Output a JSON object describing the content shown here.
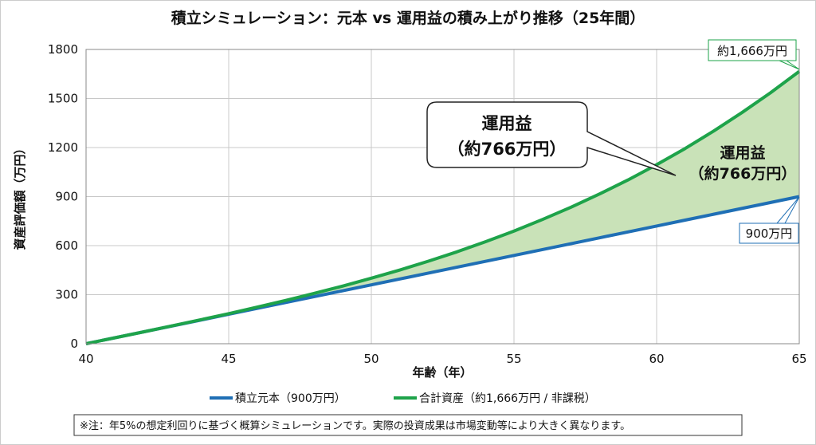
{
  "chart_data": {
    "type": "area",
    "title": "積立シミュレーション：元本 vs 運用益の積み上がり推移（25年間）",
    "xlabel": "年齢（年）",
    "ylabel": "資産評価額（万円）",
    "xlim": [
      40,
      65
    ],
    "ylim": [
      0,
      1800
    ],
    "xticks": [
      40,
      45,
      50,
      55,
      60,
      65
    ],
    "yticks": [
      0,
      300,
      600,
      900,
      1200,
      1500,
      1800
    ],
    "grid": true,
    "legend_position": "bottom",
    "x": [
      40,
      41,
      42,
      43,
      44,
      45,
      46,
      47,
      48,
      49,
      50,
      51,
      52,
      53,
      54,
      55,
      56,
      57,
      58,
      59,
      60,
      61,
      62,
      63,
      64,
      65
    ],
    "series": [
      {
        "name": "積立元本（900万円）",
        "color": "#1f6fb5",
        "values": [
          0,
          36,
          72,
          108,
          144,
          180,
          216,
          252,
          288,
          324,
          360,
          396,
          432,
          468,
          504,
          540,
          576,
          612,
          648,
          684,
          720,
          756,
          792,
          828,
          864,
          900
        ]
      },
      {
        "name": "合計資産（約1,666万円 / 非課税）",
        "color": "#1ea34a",
        "values": [
          0,
          36,
          72,
          109,
          146,
          184,
          224,
          265,
          308,
          353,
          401,
          451,
          505,
          562,
          624,
          689,
          760,
          835,
          916,
          1002,
          1095,
          1194,
          1301,
          1415,
          1536,
          1666
        ]
      }
    ],
    "fill_color": "#c9e2b8",
    "annotations": {
      "callout_line1": "運用益",
      "callout_line2": "（約766万円）",
      "area_label_line1": "運用益",
      "area_label_line2": "（約766万円）",
      "end_total": "約1,666万円",
      "end_principal": "900万円"
    },
    "note": "※注：年5%の想定利回りに基づく概算シミュレーションです。実際の投資成果は市場変動等により大きく異なります。"
  }
}
